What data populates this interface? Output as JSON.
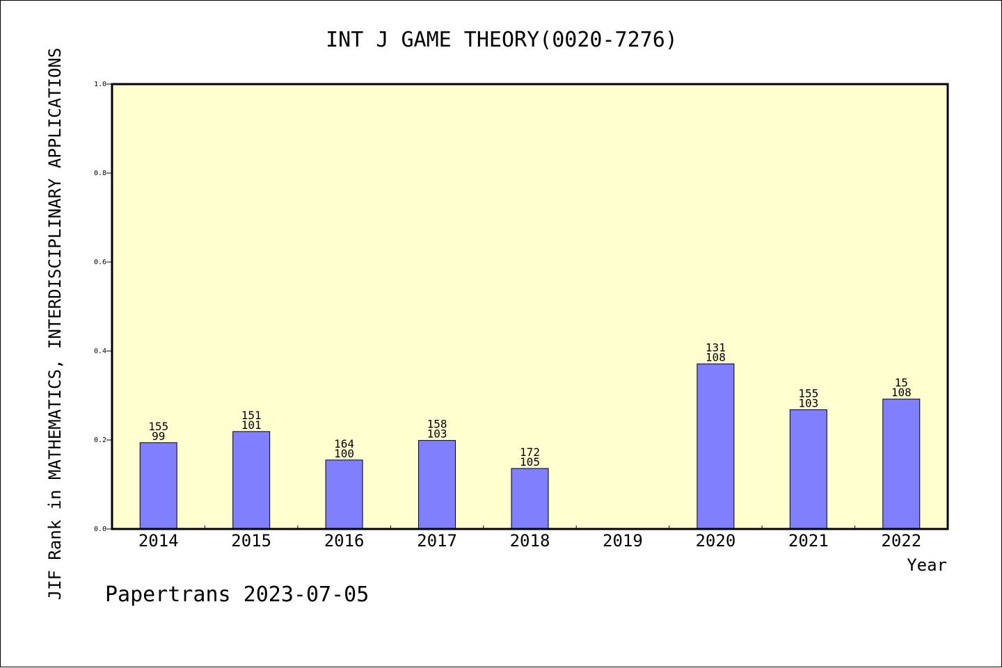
{
  "chart_data": {
    "type": "bar",
    "title": "INT J GAME THEORY(0020-7276)",
    "ylabel": "JIF Rank in MATHEMATICS, INTERDISCIPLINARY APPLICATIONS",
    "xlabel": "Year",
    "footer": "Papertrans 2023-07-05",
    "categories": [
      "2014",
      "2015",
      "2016",
      "2017",
      "2018",
      "2019",
      "2020",
      "2021",
      "2022"
    ],
    "values": [
      0.194,
      0.219,
      0.155,
      0.199,
      0.136,
      null,
      0.371,
      0.268,
      0.292
    ],
    "labels_top": [
      "155",
      "151",
      "164",
      "158",
      "172",
      "",
      "131",
      "155",
      "15"
    ],
    "labels_bottom": [
      "99",
      "101",
      "100",
      "103",
      "105",
      "",
      "108",
      "103",
      "108"
    ],
    "ylim": [
      0,
      1.0
    ],
    "yticks": [
      "0.0",
      "0.2",
      "0.4",
      "0.6",
      "0.8",
      "1.0"
    ],
    "grid": false,
    "colors": {
      "plot_background": "#ffffd0",
      "bar_fill": "#8080ff",
      "bar_stroke": "#000000",
      "axis": "#000000"
    }
  }
}
